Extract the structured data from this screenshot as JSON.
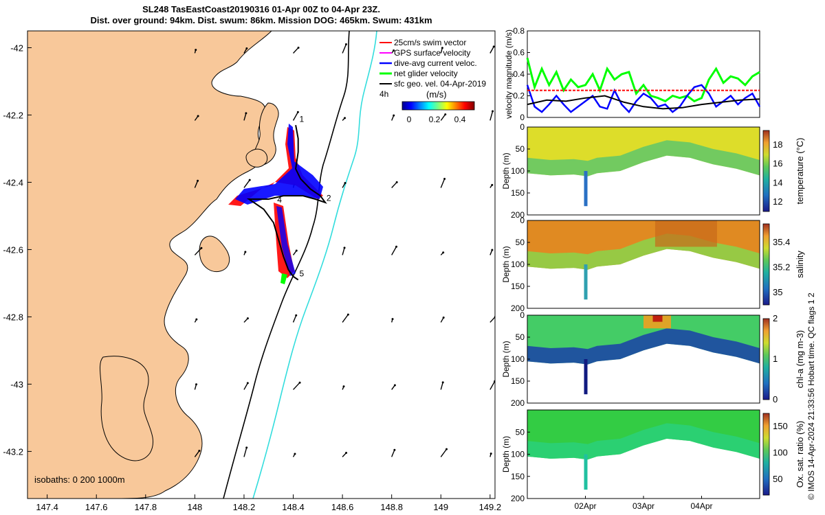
{
  "header": {
    "line1": "SL248 TasEastCoast20190316 01-Apr 00Z to 04-Apr 23Z.",
    "line2": "Dist. over ground: 94km. Dist. swum: 86km. Mission DOG: 465km. Swum: 431km"
  },
  "footer_credit": "© IMOS 14-Apr-2024 21:33:56 Hobart time. QC flags 1  2",
  "colors": {
    "land": "#f8c89a",
    "swim": "#ff0000",
    "gps": "#ff00ff",
    "current": "#0000ff",
    "net": "#00ff00",
    "geo": "#000000",
    "isobath200": "#000000",
    "isobath1000": "#33dddd"
  },
  "chart_data": [
    {
      "type": "scatter",
      "name": "glider-track-map",
      "xlim": [
        147.32,
        149.22
      ],
      "ylim": [
        -43.34,
        -41.95
      ],
      "x_ticks": [
        "147.4",
        "147.6",
        "147.8",
        "148",
        "148.2",
        "148.4",
        "148.6",
        "148.8",
        "149",
        "149.2"
      ],
      "x_tick_values": [
        147.4,
        147.6,
        147.8,
        148.0,
        148.2,
        148.4,
        148.6,
        148.8,
        149.0,
        149.2
      ],
      "y_ticks": [
        "-42",
        "-42.2",
        "-42.4",
        "-42.6",
        "-42.8",
        "-43",
        "-43.2"
      ],
      "y_tick_values": [
        -42.0,
        -42.2,
        -42.4,
        -42.6,
        -42.8,
        -43.0,
        -43.2
      ],
      "legend": {
        "items": [
          "25cm/s swim vector",
          "GPS surface velocity",
          "dive-avg current veloc.",
          "net glider velocity",
          "sfc geo. vel. 04-Apr-2019"
        ],
        "time_label": "4h",
        "colorbar_title": "(m/s)",
        "colorbar_ticks": [
          "0",
          "0.2",
          "0.4"
        ]
      },
      "isobath_label": "isobaths: 0   200  1000m",
      "track": {
        "lon": [
          148.41,
          148.42,
          148.42,
          148.41,
          148.43,
          148.47,
          148.51,
          148.53,
          148.49,
          148.44,
          148.36,
          148.3,
          148.26,
          148.22,
          148.28,
          148.32,
          148.34,
          148.36,
          148.38,
          148.4,
          148.42
        ],
        "lat": [
          -42.23,
          -42.27,
          -42.31,
          -42.36,
          -42.39,
          -42.42,
          -42.44,
          -42.46,
          -42.45,
          -42.44,
          -42.44,
          -42.45,
          -42.45,
          -42.45,
          -42.48,
          -42.52,
          -42.57,
          -42.62,
          -42.66,
          -42.68,
          -42.69
        ]
      },
      "waypoints": [
        {
          "label": "1",
          "lon": 148.425,
          "lat": -42.22
        },
        {
          "label": "2",
          "lon": 148.535,
          "lat": -42.455
        },
        {
          "label": "4",
          "lon": 148.335,
          "lat": -42.46
        },
        {
          "label": "5",
          "lon": 148.425,
          "lat": -42.68
        }
      ],
      "vector_field_lon": [
        148.0,
        148.2,
        148.4,
        148.6,
        148.8,
        149.0,
        149.2
      ],
      "vector_field_lat": [
        -42.0,
        -42.2,
        -42.4,
        -42.6,
        -42.8,
        -43.0,
        -43.2
      ]
    },
    {
      "type": "line",
      "name": "velocity-magnitude",
      "ylabel": "velocity magnitude (m/s)",
      "ylim": [
        0,
        0.8
      ],
      "y_ticks": [
        "0",
        "0.2",
        "0.4",
        "0.6",
        "0.8"
      ],
      "xlim": [
        0,
        96
      ],
      "series": [
        {
          "name": "net glider velocity",
          "color": "#00ff00",
          "x": [
            0,
            3,
            6,
            9,
            12,
            15,
            18,
            21,
            24,
            27,
            30,
            33,
            36,
            39,
            42,
            45,
            48,
            51,
            54,
            57,
            60,
            63,
            66,
            69,
            72,
            75,
            78,
            81,
            84,
            87,
            90,
            93,
            96
          ],
          "y": [
            0.55,
            0.28,
            0.45,
            0.3,
            0.42,
            0.25,
            0.35,
            0.28,
            0.3,
            0.4,
            0.25,
            0.45,
            0.35,
            0.4,
            0.42,
            0.22,
            0.3,
            0.2,
            0.18,
            0.15,
            0.2,
            0.18,
            0.2,
            0.15,
            0.18,
            0.35,
            0.45,
            0.32,
            0.38,
            0.36,
            0.3,
            0.38,
            0.42
          ]
        },
        {
          "name": "dive-avg current veloc.",
          "color": "#0000ff",
          "x": [
            0,
            3,
            6,
            9,
            12,
            15,
            18,
            21,
            24,
            27,
            30,
            33,
            36,
            39,
            42,
            45,
            48,
            51,
            54,
            57,
            60,
            63,
            66,
            69,
            72,
            75,
            78,
            81,
            84,
            87,
            90,
            93,
            96
          ],
          "y": [
            0.3,
            0.1,
            0.05,
            0.12,
            0.2,
            0.12,
            0.05,
            0.1,
            0.15,
            0.2,
            0.1,
            0.08,
            0.25,
            0.12,
            0.05,
            0.15,
            0.22,
            0.18,
            0.1,
            0.12,
            0.05,
            0.1,
            0.2,
            0.28,
            0.3,
            0.22,
            0.1,
            0.15,
            0.2,
            0.12,
            0.18,
            0.22,
            0.1
          ]
        },
        {
          "name": "25cm/s swim vector",
          "color": "#ff0000",
          "x": [
            0,
            96
          ],
          "y": [
            0.25,
            0.25
          ]
        },
        {
          "name": "sfc geo. vel.",
          "color": "#000000",
          "x": [
            0,
            8,
            16,
            24,
            32,
            40,
            48,
            56,
            64,
            72,
            80,
            88,
            96
          ],
          "y": [
            0.12,
            0.16,
            0.15,
            0.18,
            0.2,
            0.14,
            0.1,
            0.08,
            0.09,
            0.12,
            0.14,
            0.16,
            0.17
          ]
        }
      ]
    },
    {
      "type": "heatmap",
      "name": "temperature-section",
      "ylabel": "Depth (m)",
      "ylim": [
        200,
        0
      ],
      "y_ticks": [
        "0",
        "50",
        "100",
        "150",
        "200"
      ],
      "colorbar_label": "temperature (°C)",
      "colorbar_ticks": [
        "12",
        "14",
        "16",
        "18"
      ],
      "clim": [
        11,
        19.5
      ]
    },
    {
      "type": "heatmap",
      "name": "salinity-section",
      "ylabel": "Depth (m)",
      "ylim": [
        200,
        0
      ],
      "y_ticks": [
        "0",
        "50",
        "100",
        "150",
        "200"
      ],
      "colorbar_label": "salinity",
      "colorbar_ticks": [
        "35",
        "35.2",
        "35.4"
      ],
      "clim": [
        34.9,
        35.55
      ]
    },
    {
      "type": "heatmap",
      "name": "chlorophyll-section",
      "ylabel": "Depth (m)",
      "ylim": [
        200,
        0
      ],
      "y_ticks": [
        "0",
        "50",
        "100",
        "150",
        "200"
      ],
      "colorbar_label": "chl-a (mg m-3)",
      "colorbar_ticks": [
        "0",
        "1",
        "2"
      ],
      "clim": [
        0,
        2
      ]
    },
    {
      "type": "heatmap",
      "name": "oxygen-section",
      "ylabel": "Depth (m)",
      "ylim": [
        200,
        0
      ],
      "y_ticks": [
        "50",
        "100",
        "150",
        "200"
      ],
      "colorbar_label": "Ox. sat. ratio (%)",
      "colorbar_ticks": [
        "50",
        "100",
        "150"
      ],
      "clim": [
        20,
        175
      ],
      "x_ticks": [
        "02Apr",
        "03Apr",
        "04Apr"
      ],
      "x_tick_hours": [
        24,
        48,
        72
      ]
    }
  ]
}
